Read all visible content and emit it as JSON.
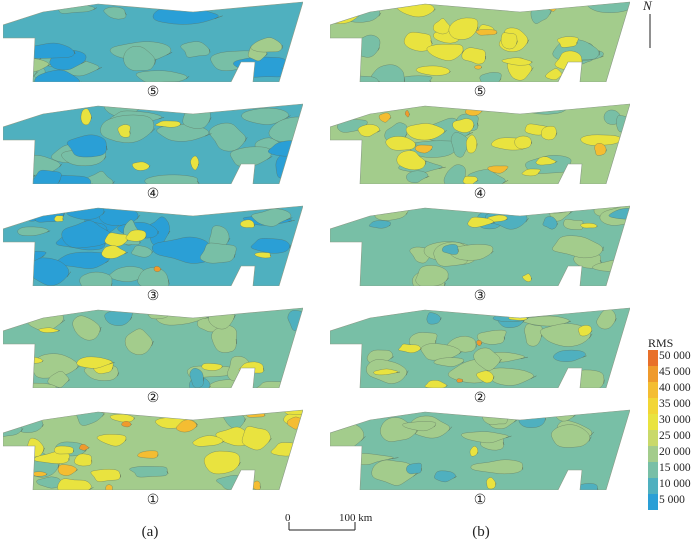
{
  "columns": [
    {
      "id": "a",
      "label": "(a)"
    },
    {
      "id": "b",
      "label": "(b)"
    }
  ],
  "panel_labels": [
    "⑤",
    "④",
    "③",
    "②",
    "①"
  ],
  "legend": {
    "title": "RMS",
    "ticks": [
      "50 000",
      "45 000",
      "40 000",
      "35 000",
      "30 000",
      "25 000",
      "20 000",
      "15 000",
      "10 000",
      "5 000"
    ],
    "colors": [
      "#e8702a",
      "#ef9a2c",
      "#f4bd32",
      "#f2d635",
      "#e9e33f",
      "#c9d96a",
      "#a3cc8c",
      "#78bfa6",
      "#4fb0bf",
      "#2a9fd6"
    ]
  },
  "scale_bar": {
    "start": "0",
    "end": "100 km"
  },
  "north_arrow": {
    "label": "N"
  },
  "palette": {
    "deep": "#2a9fd6",
    "low": "#4fb0bf",
    "base": "#78bfa6",
    "mid": "#a3cc8c",
    "high": "#e9e33f",
    "peak": "#f4bd32",
    "max": "#ef9a2c",
    "contour": "#5a6a58"
  }
}
